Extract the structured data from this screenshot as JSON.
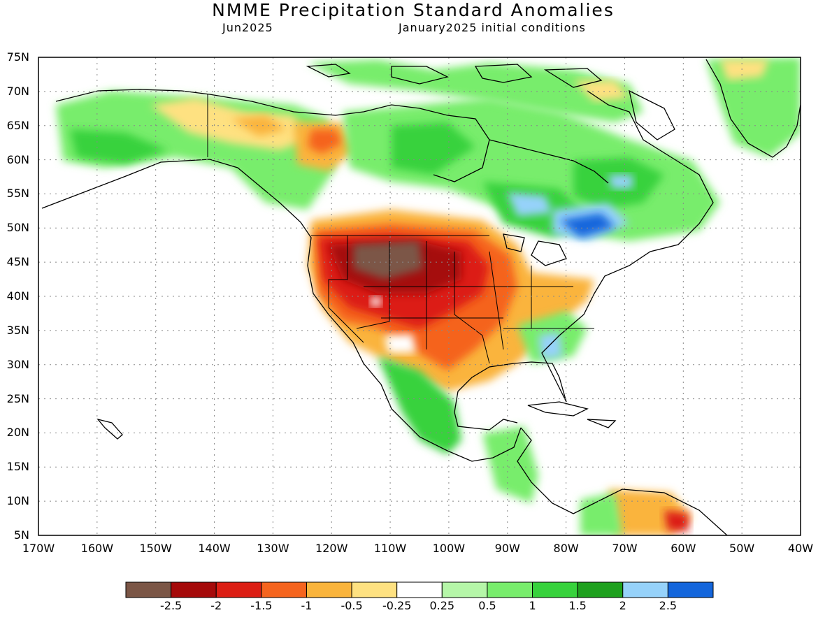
{
  "title": "NMME Precipitation Standard Anomalies",
  "subtitle_left": "Jun2025",
  "subtitle_right": "January2025 initial conditions",
  "lat_labels": [
    "75N",
    "70N",
    "65N",
    "60N",
    "55N",
    "50N",
    "45N",
    "40N",
    "35N",
    "30N",
    "25N",
    "20N",
    "15N",
    "10N",
    "5N"
  ],
  "lon_labels": [
    "170W",
    "160W",
    "150W",
    "140W",
    "130W",
    "120W",
    "110W",
    "100W",
    "90W",
    "80W",
    "70W",
    "60W",
    "50W",
    "40W"
  ],
  "colorbar": {
    "colors": [
      "#7b5646",
      "#a50a0a",
      "#dc1e14",
      "#f5641e",
      "#fab43c",
      "#fee181",
      "#ffffff",
      "#b5f6a8",
      "#78ed6c",
      "#37d23c",
      "#1ea01e",
      "#96d2fa",
      "#1466dc"
    ],
    "labels": [
      "-2.5",
      "-2",
      "-1.5",
      "-1",
      "-0.5",
      "-0.25",
      "0.25",
      "0.5",
      "1",
      "1.5",
      "2",
      "2.5"
    ]
  }
}
